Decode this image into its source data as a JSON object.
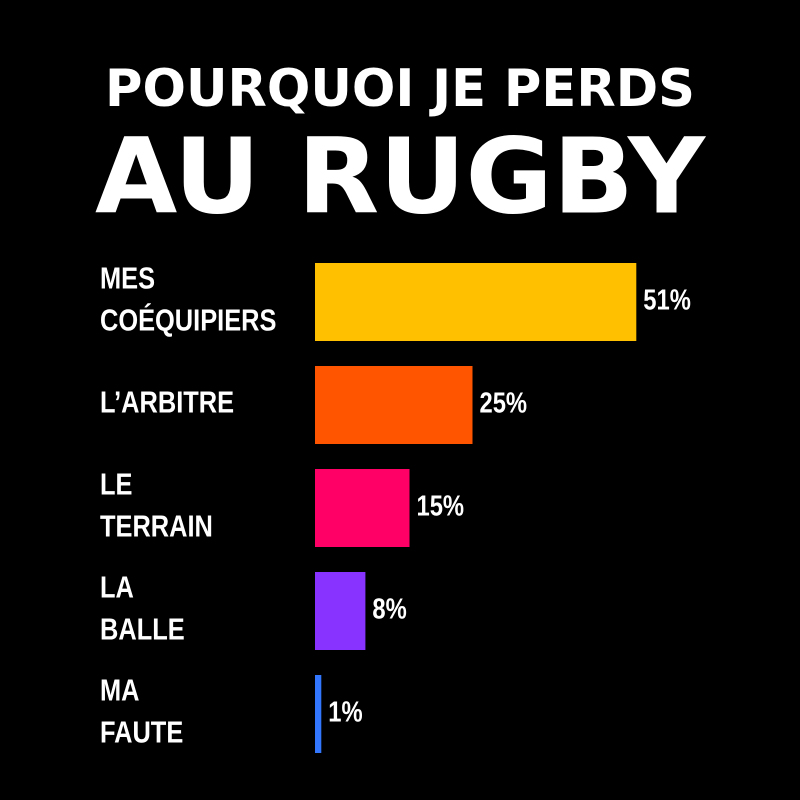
{
  "chart_data": {
    "type": "hbar",
    "title": "POURQUOI JE PERDS",
    "subtitle": "AU RUGBY",
    "categories": [
      "MES\nCOÉQUIPIERS",
      "L’ARBITRE",
      "LE\nTERRAIN",
      "LA\nBALLE",
      "MA\nFAUTE"
    ],
    "values": [
      51,
      25,
      15,
      8,
      1
    ],
    "value_labels": [
      "51%",
      "25%",
      "15%",
      "8%",
      "1%"
    ],
    "colors": [
      "#ffc000",
      "#ff5500",
      "#ff0066",
      "#8833ff",
      "#3377ff"
    ]
  }
}
